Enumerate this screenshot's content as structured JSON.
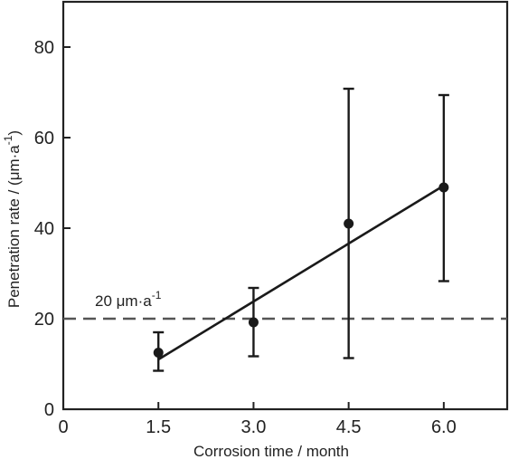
{
  "chart_data": {
    "type": "scatter",
    "xlabel": "Corrosion time / month",
    "ylabel": {
      "main": "Penetration rate / (μm·a",
      "sup": "-1",
      "close": ")"
    },
    "xlim": [
      0,
      7
    ],
    "ylim": [
      0,
      90
    ],
    "x_ticks": [
      0,
      1.5,
      3.0,
      4.5,
      6.0
    ],
    "x_tick_labels": [
      "0",
      "1.5",
      "3.0",
      "4.5",
      "6.0"
    ],
    "y_ticks": [
      0,
      20,
      40,
      60,
      80
    ],
    "y_tick_labels": [
      "0",
      "20",
      "40",
      "60",
      "80"
    ],
    "series": [
      {
        "points": [
          {
            "x": 1.5,
            "y": 12.5,
            "err_low": 8.5,
            "err_high": 17
          },
          {
            "x": 3.0,
            "y": 19.2,
            "err_low": 11.7,
            "err_high": 26.8
          },
          {
            "x": 4.5,
            "y": 41.0,
            "err_low": 11.3,
            "err_high": 70.8
          },
          {
            "x": 6.0,
            "y": 49.0,
            "err_low": 28.3,
            "err_high": 69.4
          }
        ]
      }
    ],
    "fit_line": {
      "x": [
        1.5,
        6.0
      ],
      "y": [
        11.0,
        49.4
      ]
    },
    "reference_line": {
      "y": 20,
      "label_main": "20 μm·a",
      "label_sup": "-1"
    },
    "grid": false,
    "colors": {
      "data": "#1a1a1a",
      "reference": "#555555",
      "axis": "#222222"
    }
  }
}
